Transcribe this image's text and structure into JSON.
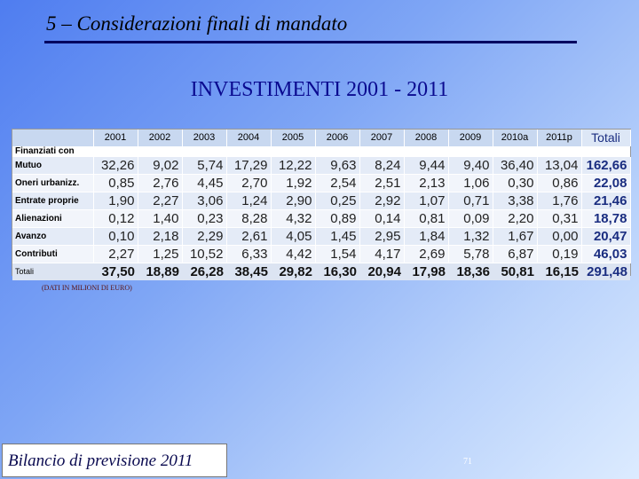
{
  "header": {
    "title": "5 – Considerazioni finali di mandato"
  },
  "main_title": "INVESTIMENTI 2001 - 2011",
  "table": {
    "columns": [
      "2001",
      "2002",
      "2003",
      "2004",
      "2005",
      "2006",
      "2007",
      "2008",
      "2009",
      "2010a",
      "2011p",
      "Totali"
    ],
    "section_label": "Finanziati con",
    "rows": [
      {
        "label": "Mutuo",
        "values": [
          "32,26",
          "9,02",
          "5,74",
          "17,29",
          "12,22",
          "9,63",
          "8,24",
          "9,44",
          "9,40",
          "36,40",
          "13,04",
          "162,66"
        ]
      },
      {
        "label": "Oneri urbanizz.",
        "values": [
          "0,85",
          "2,76",
          "4,45",
          "2,70",
          "1,92",
          "2,54",
          "2,51",
          "2,13",
          "1,06",
          "0,30",
          "0,86",
          "22,08"
        ]
      },
      {
        "label": "Entrate proprie",
        "values": [
          "1,90",
          "2,27",
          "3,06",
          "1,24",
          "2,90",
          "0,25",
          "2,92",
          "1,07",
          "0,71",
          "3,38",
          "1,76",
          "21,46"
        ]
      },
      {
        "label": "Alienazioni",
        "values": [
          "0,12",
          "1,40",
          "0,23",
          "8,28",
          "4,32",
          "0,89",
          "0,14",
          "0,81",
          "0,09",
          "2,20",
          "0,31",
          "18,78"
        ]
      },
      {
        "label": "Avanzo",
        "values": [
          "0,10",
          "2,18",
          "2,29",
          "2,61",
          "4,05",
          "1,45",
          "2,95",
          "1,84",
          "1,32",
          "1,67",
          "0,00",
          "20,47"
        ]
      },
      {
        "label": "Contributi",
        "values": [
          "2,27",
          "1,25",
          "10,52",
          "6,33",
          "4,42",
          "1,54",
          "4,17",
          "2,69",
          "5,78",
          "6,87",
          "0,19",
          "46,03"
        ]
      }
    ],
    "total_row": {
      "label": "Totali",
      "values": [
        "37,50",
        "18,89",
        "26,28",
        "38,45",
        "29,82",
        "16,30",
        "20,94",
        "17,98",
        "18,36",
        "50,81",
        "16,15",
        "291,48"
      ]
    }
  },
  "note": "(DATI IN MILIONI DI EURO)",
  "footer": {
    "text": "Bilancio di previsione 2011"
  },
  "page_number": "71"
}
